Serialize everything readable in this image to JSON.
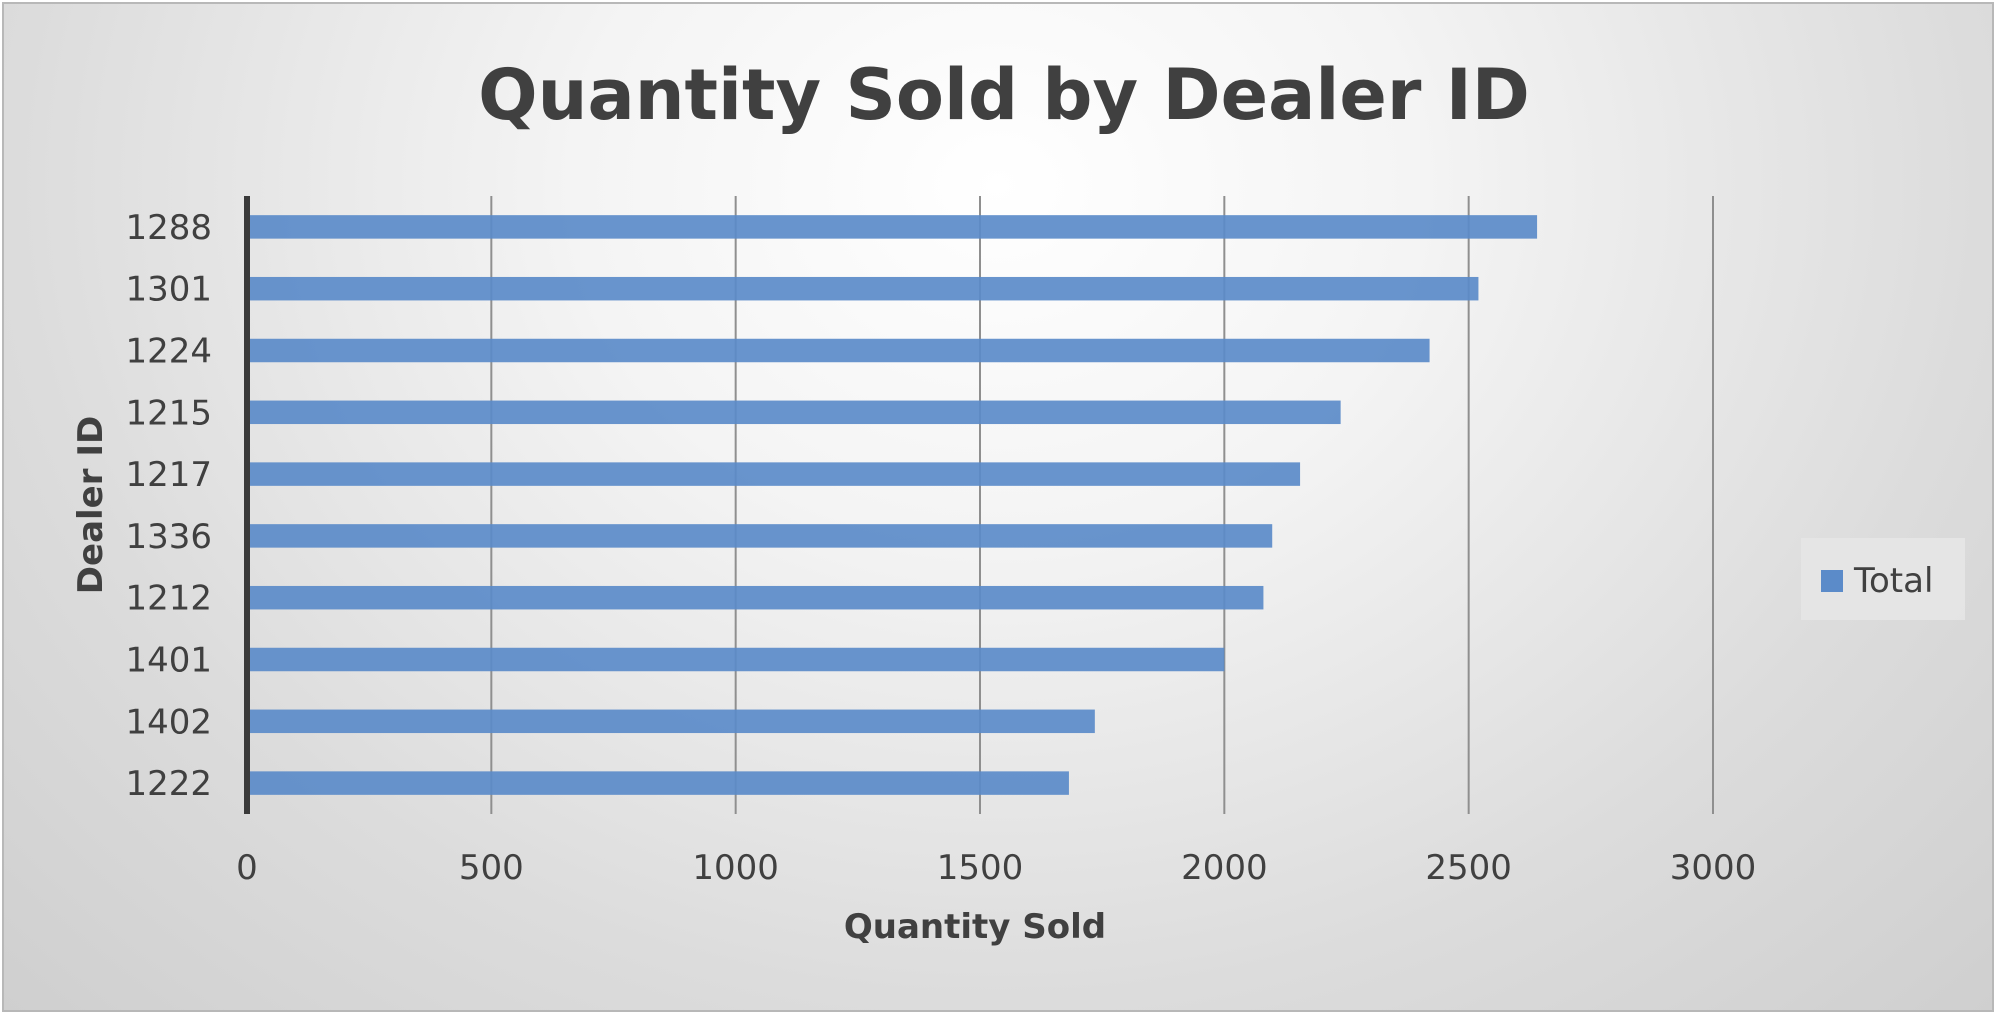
{
  "chart_data": {
    "type": "bar",
    "orientation": "horizontal",
    "title": "Quantity Sold by Dealer ID",
    "xlabel": "Quantity Sold",
    "ylabel": "Dealer ID",
    "categories": [
      "1288",
      "1301",
      "1224",
      "1215",
      "1217",
      "1336",
      "1212",
      "1401",
      "1402",
      "1222"
    ],
    "series": [
      {
        "name": "Total",
        "color": "#5b8bc9",
        "values": [
          2640,
          2520,
          2420,
          2238,
          2155,
          2098,
          2080,
          2000,
          1735,
          1682
        ]
      }
    ],
    "xlim": [
      0,
      3000
    ],
    "xticks": [
      "0",
      "500",
      "1000",
      "1500",
      "2000",
      "2500",
      "3000"
    ],
    "grid": true,
    "legend": "right"
  }
}
